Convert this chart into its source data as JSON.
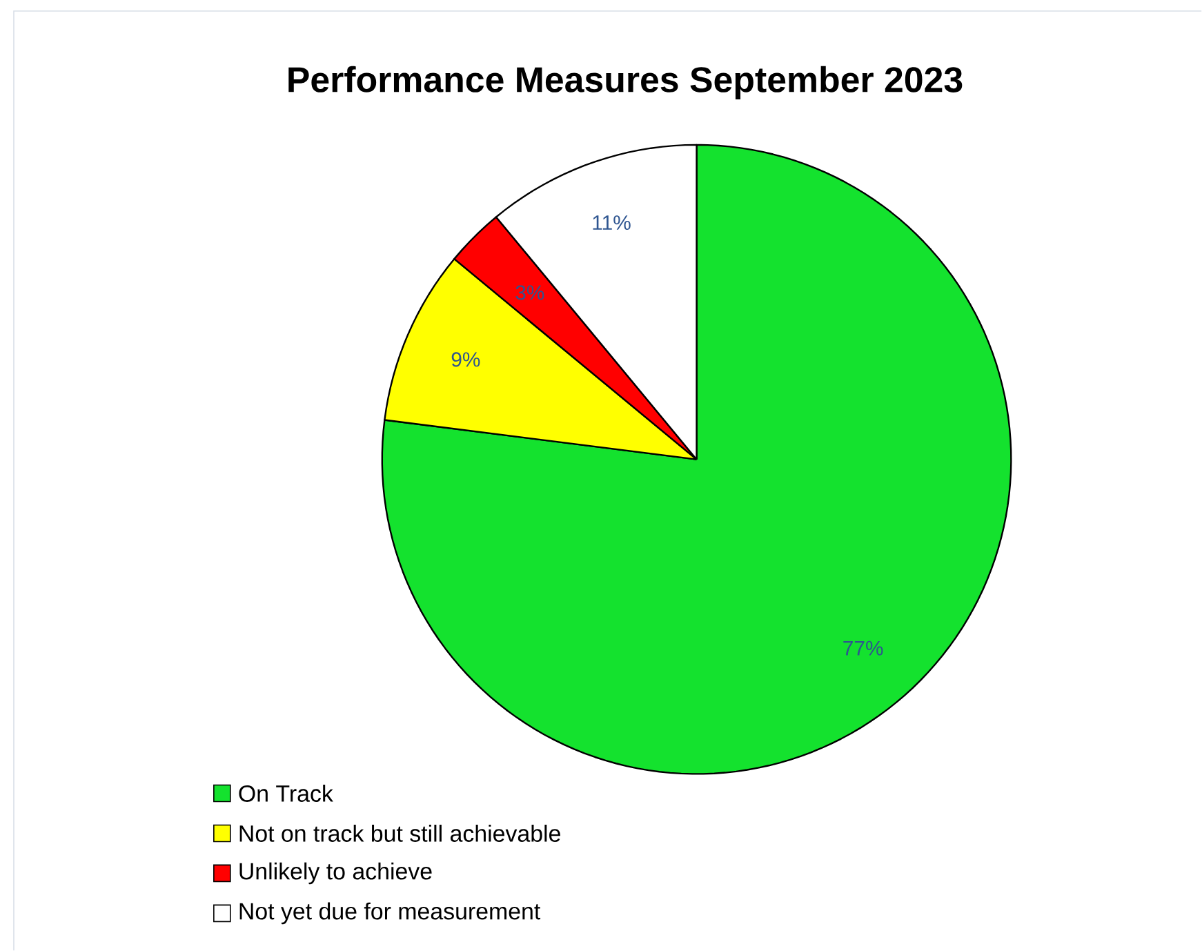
{
  "chart_data": {
    "type": "pie",
    "title": "Performance Measures September 2023",
    "categories": [
      "On Track",
      "Not on track but still achievable",
      "Unlikely to achieve",
      "Not yet due for measurement"
    ],
    "values": [
      77,
      9,
      3,
      11
    ],
    "value_labels": [
      "77%",
      "9%",
      "3%",
      "11%"
    ],
    "colors": [
      "#14e22e",
      "#ffff00",
      "#ff0000",
      "#ffffff"
    ],
    "legend": "bottom left"
  }
}
